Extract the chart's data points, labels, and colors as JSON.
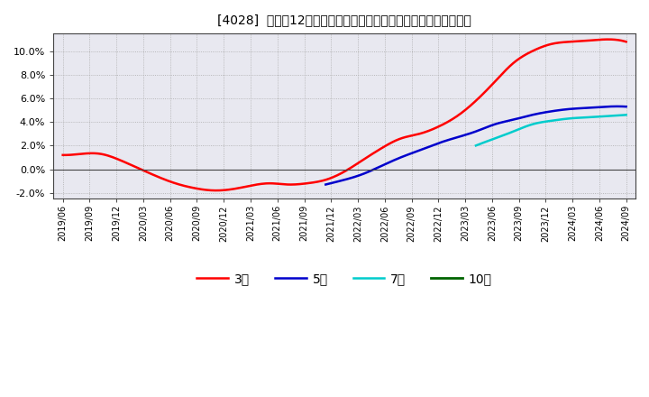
{
  "title": "[4028]  売上高12か月移動合計の対前年同期増減率の平均値の推移",
  "ylim": [
    -0.025,
    0.115
  ],
  "yticks": [
    -0.02,
    0.0,
    0.02,
    0.04,
    0.06,
    0.08,
    0.1
  ],
  "background_color": "#ffffff",
  "grid_color": "#aaaaaa",
  "series": [
    {
      "name": "3年",
      "color": "#ff0000",
      "points": [
        [
          0,
          0.012
        ],
        [
          1,
          0.013
        ],
        [
          2,
          0.013
        ],
        [
          3,
          0.008
        ],
        [
          4,
          0.001
        ],
        [
          5,
          -0.006
        ],
        [
          6,
          -0.012
        ],
        [
          7,
          -0.016
        ],
        [
          8,
          -0.018
        ],
        [
          9,
          -0.017
        ],
        [
          10,
          -0.014
        ],
        [
          11,
          -0.012
        ],
        [
          12,
          -0.013
        ],
        [
          13,
          -0.012
        ],
        [
          14,
          -0.009
        ],
        [
          15,
          -0.002
        ],
        [
          16,
          0.008
        ],
        [
          17,
          0.018
        ],
        [
          18,
          0.026
        ],
        [
          19,
          0.03
        ],
        [
          20,
          0.036
        ],
        [
          21,
          0.045
        ],
        [
          22,
          0.058
        ],
        [
          23,
          0.074
        ],
        [
          24,
          0.09
        ],
        [
          25,
          0.1
        ],
        [
          26,
          0.106
        ],
        [
          27,
          0.108
        ],
        [
          28,
          0.109
        ],
        [
          29,
          0.11
        ],
        [
          30,
          0.108
        ]
      ]
    },
    {
      "name": "5年",
      "color": "#0000cc",
      "points": [
        [
          14,
          -0.013
        ],
        [
          15,
          -0.009
        ],
        [
          16,
          -0.004
        ],
        [
          17,
          0.003
        ],
        [
          18,
          0.01
        ],
        [
          19,
          0.016
        ],
        [
          20,
          0.022
        ],
        [
          21,
          0.027
        ],
        [
          22,
          0.032
        ],
        [
          23,
          0.038
        ],
        [
          24,
          0.042
        ],
        [
          25,
          0.046
        ],
        [
          26,
          0.049
        ],
        [
          27,
          0.051
        ],
        [
          28,
          0.052
        ],
        [
          29,
          0.053
        ],
        [
          30,
          0.053
        ]
      ]
    },
    {
      "name": "7年",
      "color": "#00cccc",
      "points": [
        [
          22,
          0.02
        ],
        [
          23,
          0.026
        ],
        [
          24,
          0.032
        ],
        [
          25,
          0.038
        ],
        [
          26,
          0.041
        ],
        [
          27,
          0.043
        ],
        [
          28,
          0.044
        ],
        [
          29,
          0.045
        ],
        [
          30,
          0.046
        ]
      ]
    },
    {
      "name": "10年",
      "color": "#006400",
      "points": []
    }
  ],
  "x_labels": [
    "2019/06",
    "2019/09",
    "2019/12",
    "2020/03",
    "2020/06",
    "2020/09",
    "2020/12",
    "2021/03",
    "2021/06",
    "2021/09",
    "2021/12",
    "2022/03",
    "2022/06",
    "2022/09",
    "2022/12",
    "2023/03",
    "2023/06",
    "2023/09",
    "2023/12",
    "2024/03",
    "2024/06",
    "2024/09"
  ],
  "n_points": 31,
  "legend_labels": [
    "3年",
    "5年",
    "7年",
    "10年"
  ]
}
